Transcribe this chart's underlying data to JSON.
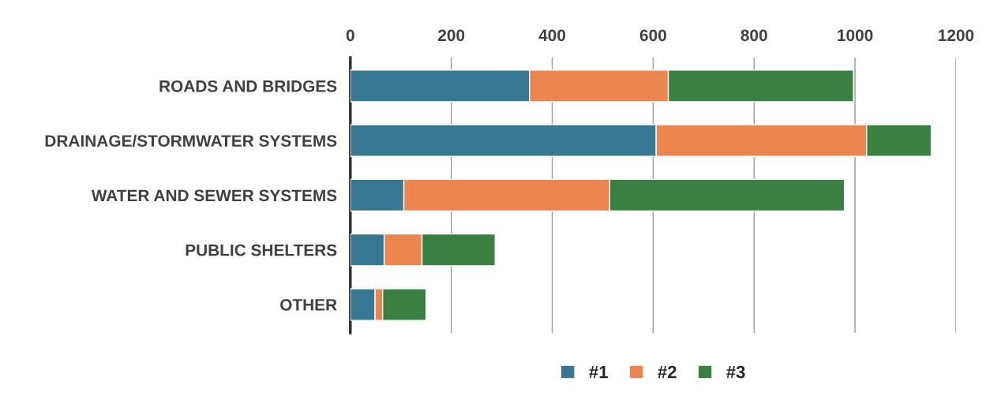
{
  "chart_data": {
    "type": "bar",
    "orientation": "horizontal",
    "stacked": true,
    "categories": [
      "ROADS AND BRIDGES",
      "DRAINAGE/STORMWATER SYSTEMS",
      "WATER AND SEWER SYSTEMS",
      "PUBLIC SHELTERS",
      "OTHER"
    ],
    "series": [
      {
        "name": "#1",
        "color": "#377791",
        "values": [
          355,
          606,
          106,
          67,
          49
        ]
      },
      {
        "name": "#2",
        "color": "#ec8550",
        "values": [
          275,
          417,
          408,
          75,
          15
        ]
      },
      {
        "name": "#3",
        "color": "#3a8043",
        "values": [
          367,
          128,
          465,
          145,
          86
        ]
      }
    ],
    "xlim": [
      0,
      1200
    ],
    "xticks": [
      0,
      200,
      400,
      600,
      800,
      1000,
      1200
    ],
    "grid": "x",
    "legend": "bottom"
  }
}
